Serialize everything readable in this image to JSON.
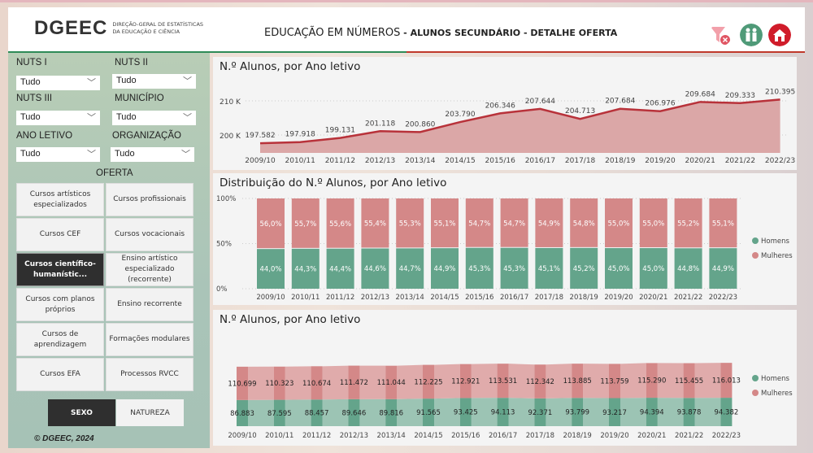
{
  "header": {
    "logo": "DGEEC",
    "logo_sub1": "DIREÇÃO-GERAL DE ESTATÍSTICAS",
    "logo_sub2": "DA EDUCAÇÃO E CIÊNCIA",
    "title_main": "EDUCAÇÃO EM NÚMEROS",
    "title_sub": " - ALUNOS SECUNDÁRIO - DETALHE OFERTA",
    "icons": [
      "clear-filter-icon",
      "people-icon",
      "home-icon"
    ]
  },
  "filters": [
    {
      "label": "NUTS I",
      "value": "Tudo"
    },
    {
      "label": "NUTS II",
      "value": "Tudo"
    },
    {
      "label": "NUTS III",
      "value": "Tudo"
    },
    {
      "label": "MUNICÍPIO",
      "value": "Tudo"
    },
    {
      "label": "ANO LETIVO",
      "value": "Tudo"
    },
    {
      "label": "ORGANIZAÇÃO",
      "value": "Tudo"
    }
  ],
  "oferta": {
    "title": "OFERTA",
    "items": [
      "Cursos artísticos especializados",
      "Cursos profissionais",
      "Cursos CEF",
      "Cursos vocacionais",
      "Cursos científico-humanístic...",
      "Ensino artístico especializado (recorrente)",
      "Cursos com planos próprios",
      "Ensino recorrente",
      "Cursos de aprendizagem",
      "Formações modulares",
      "Cursos EFA",
      "Processos RVCC"
    ],
    "selected": 4
  },
  "toggles": {
    "sexo": "SEXO",
    "natureza": "NATUREZA"
  },
  "footer": "© DGEEC, 2024",
  "colors": {
    "homens": "#64a48b",
    "mulheres": "#d48888",
    "line": "#b8323a",
    "area": "#dba7a7"
  },
  "chart_data": [
    {
      "type": "area",
      "title": "N.º Alunos, por Ano letivo",
      "categories": [
        "2009/10",
        "2010/11",
        "2011/12",
        "2012/13",
        "2013/14",
        "2014/15",
        "2015/16",
        "2016/17",
        "2017/18",
        "2018/19",
        "2019/20",
        "2020/21",
        "2021/22",
        "2022/23"
      ],
      "values": [
        197582,
        197918,
        199131,
        201118,
        200860,
        203790,
        206346,
        207644,
        204713,
        207684,
        206976,
        209684,
        209333,
        210395
      ],
      "labels": [
        "197.582",
        "197.918",
        "199.131",
        "201.118",
        "200.860",
        "203.790",
        "206.346",
        "207.644",
        "204.713",
        "207.684",
        "206.976",
        "209.684",
        "209.333",
        "210.395"
      ],
      "yticks": [
        "200 K",
        "210 K"
      ],
      "ytick_values": [
        200000,
        210000
      ]
    },
    {
      "type": "bar",
      "stacked": "percent",
      "title": "Distribuição do N.º Alunos, por Ano letivo",
      "categories": [
        "2009/10",
        "2010/11",
        "2011/12",
        "2012/13",
        "2013/14",
        "2014/15",
        "2015/16",
        "2016/17",
        "2017/18",
        "2018/19",
        "2019/20",
        "2020/21",
        "2021/22",
        "2022/23"
      ],
      "series": [
        {
          "name": "Homens",
          "values": [
            44.0,
            44.3,
            44.4,
            44.6,
            44.7,
            44.9,
            45.3,
            45.3,
            45.1,
            45.2,
            45.0,
            45.0,
            44.8,
            44.9
          ],
          "labels": [
            "44,0%",
            "44,3%",
            "44,4%",
            "44,6%",
            "44,7%",
            "44,9%",
            "45,3%",
            "45,3%",
            "45,1%",
            "45,2%",
            "45,0%",
            "45,0%",
            "44,8%",
            "44,9%"
          ]
        },
        {
          "name": "Mulheres",
          "values": [
            56.0,
            55.7,
            55.6,
            55.4,
            55.3,
            55.1,
            54.7,
            54.7,
            54.9,
            54.8,
            55.0,
            55.0,
            55.2,
            55.1
          ],
          "labels": [
            "56,0%",
            "55,7%",
            "55,6%",
            "55,4%",
            "55,3%",
            "55,1%",
            "54,7%",
            "54,7%",
            "54,9%",
            "54,8%",
            "55,0%",
            "55,0%",
            "55,2%",
            "55,1%"
          ]
        }
      ],
      "yticks": [
        "0%",
        "50%",
        "100%"
      ],
      "legend": "right"
    },
    {
      "type": "bar",
      "stacked": "ribbon",
      "title": "N.º Alunos, por Ano letivo",
      "categories": [
        "2009/10",
        "2010/11",
        "2011/12",
        "2012/13",
        "2013/14",
        "2014/15",
        "2015/16",
        "2016/17",
        "2017/18",
        "2018/19",
        "2019/20",
        "2020/21",
        "2021/22",
        "2022/23"
      ],
      "series": [
        {
          "name": "Homens",
          "values": [
            86883,
            87595,
            88457,
            89646,
            89816,
            91565,
            93425,
            94113,
            92371,
            93799,
            93217,
            94394,
            93878,
            94382
          ],
          "labels": [
            "86.883",
            "87.595",
            "88.457",
            "89.646",
            "89.816",
            "91.565",
            "93.425",
            "94.113",
            "92.371",
            "93.799",
            "93.217",
            "94.394",
            "93.878",
            "94.382"
          ]
        },
        {
          "name": "Mulheres",
          "values": [
            110699,
            110323,
            110674,
            111472,
            111044,
            112225,
            112921,
            113531,
            112342,
            113885,
            113759,
            115290,
            115455,
            116013
          ],
          "labels": [
            "110.699",
            "110.323",
            "110.674",
            "111.472",
            "111.044",
            "112.225",
            "112.921",
            "113.531",
            "112.342",
            "113.885",
            "113.759",
            "115.290",
            "115.455",
            "116.013"
          ]
        }
      ],
      "legend": "right"
    }
  ]
}
